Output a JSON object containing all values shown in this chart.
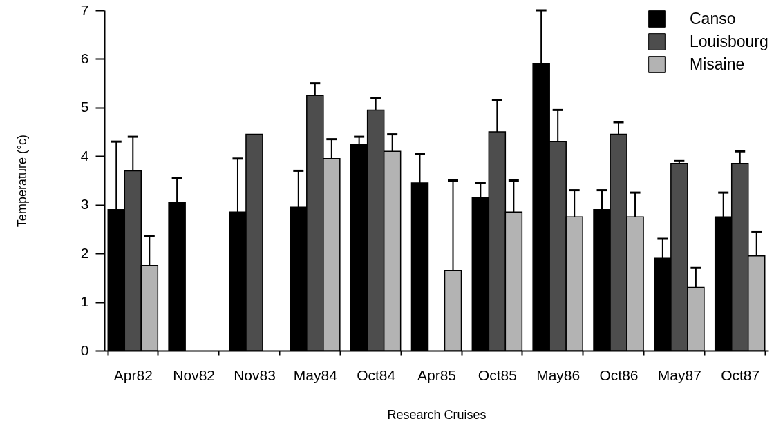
{
  "chart_data": {
    "type": "bar",
    "xlabel": "Research Cruises",
    "ylabel": "Temperature (°c)",
    "categories": [
      "Apr82",
      "Nov82",
      "Nov83",
      "May84",
      "Oct84",
      "Apr85",
      "Oct85",
      "May86",
      "Oct86",
      "May87",
      "Oct87"
    ],
    "ylim": [
      0,
      7
    ],
    "yticks": [
      0,
      1,
      2,
      3,
      4,
      5,
      6,
      7
    ],
    "grid": false,
    "legend": "top right",
    "series": [
      {
        "name": "Canso",
        "color": "#000000",
        "values": [
          2.9,
          3.05,
          2.85,
          2.95,
          4.25,
          3.45,
          3.15,
          5.9,
          2.9,
          1.9,
          2.75
        ],
        "errors": [
          [
            2.9,
            4.3
          ],
          [
            3.05,
            3.55
          ],
          [
            2.85,
            3.95
          ],
          [
            2.95,
            3.7
          ],
          [
            4.25,
            4.4
          ],
          [
            3.45,
            4.05
          ],
          [
            3.15,
            3.45
          ],
          [
            5.9,
            7.0
          ],
          [
            2.9,
            3.3
          ],
          [
            1.9,
            2.3
          ],
          [
            2.75,
            3.25
          ]
        ]
      },
      {
        "name": "Louisbourg",
        "color": "#4d4d4d",
        "values": [
          3.7,
          null,
          4.45,
          5.25,
          4.95,
          null,
          4.5,
          4.3,
          4.45,
          3.85,
          3.85
        ],
        "errors": [
          [
            3.7,
            4.4
          ],
          null,
          null,
          [
            5.25,
            5.5
          ],
          [
            4.95,
            5.2
          ],
          null,
          [
            4.5,
            5.15
          ],
          [
            4.3,
            4.95
          ],
          [
            4.45,
            4.7
          ],
          [
            3.85,
            3.9
          ],
          [
            3.85,
            4.1
          ]
        ]
      },
      {
        "name": "Misaine",
        "color": "#b3b3b3",
        "values": [
          1.75,
          null,
          null,
          3.95,
          4.1,
          1.65,
          2.85,
          2.75,
          2.75,
          1.3,
          1.95
        ],
        "errors": [
          [
            1.75,
            2.35
          ],
          null,
          null,
          [
            3.95,
            4.35
          ],
          [
            4.1,
            4.45
          ],
          [
            1.65,
            3.5
          ],
          [
            2.85,
            3.5
          ],
          [
            2.75,
            3.3
          ],
          [
            2.75,
            3.25
          ],
          [
            1.3,
            1.7
          ],
          [
            1.95,
            2.45
          ]
        ]
      }
    ]
  }
}
